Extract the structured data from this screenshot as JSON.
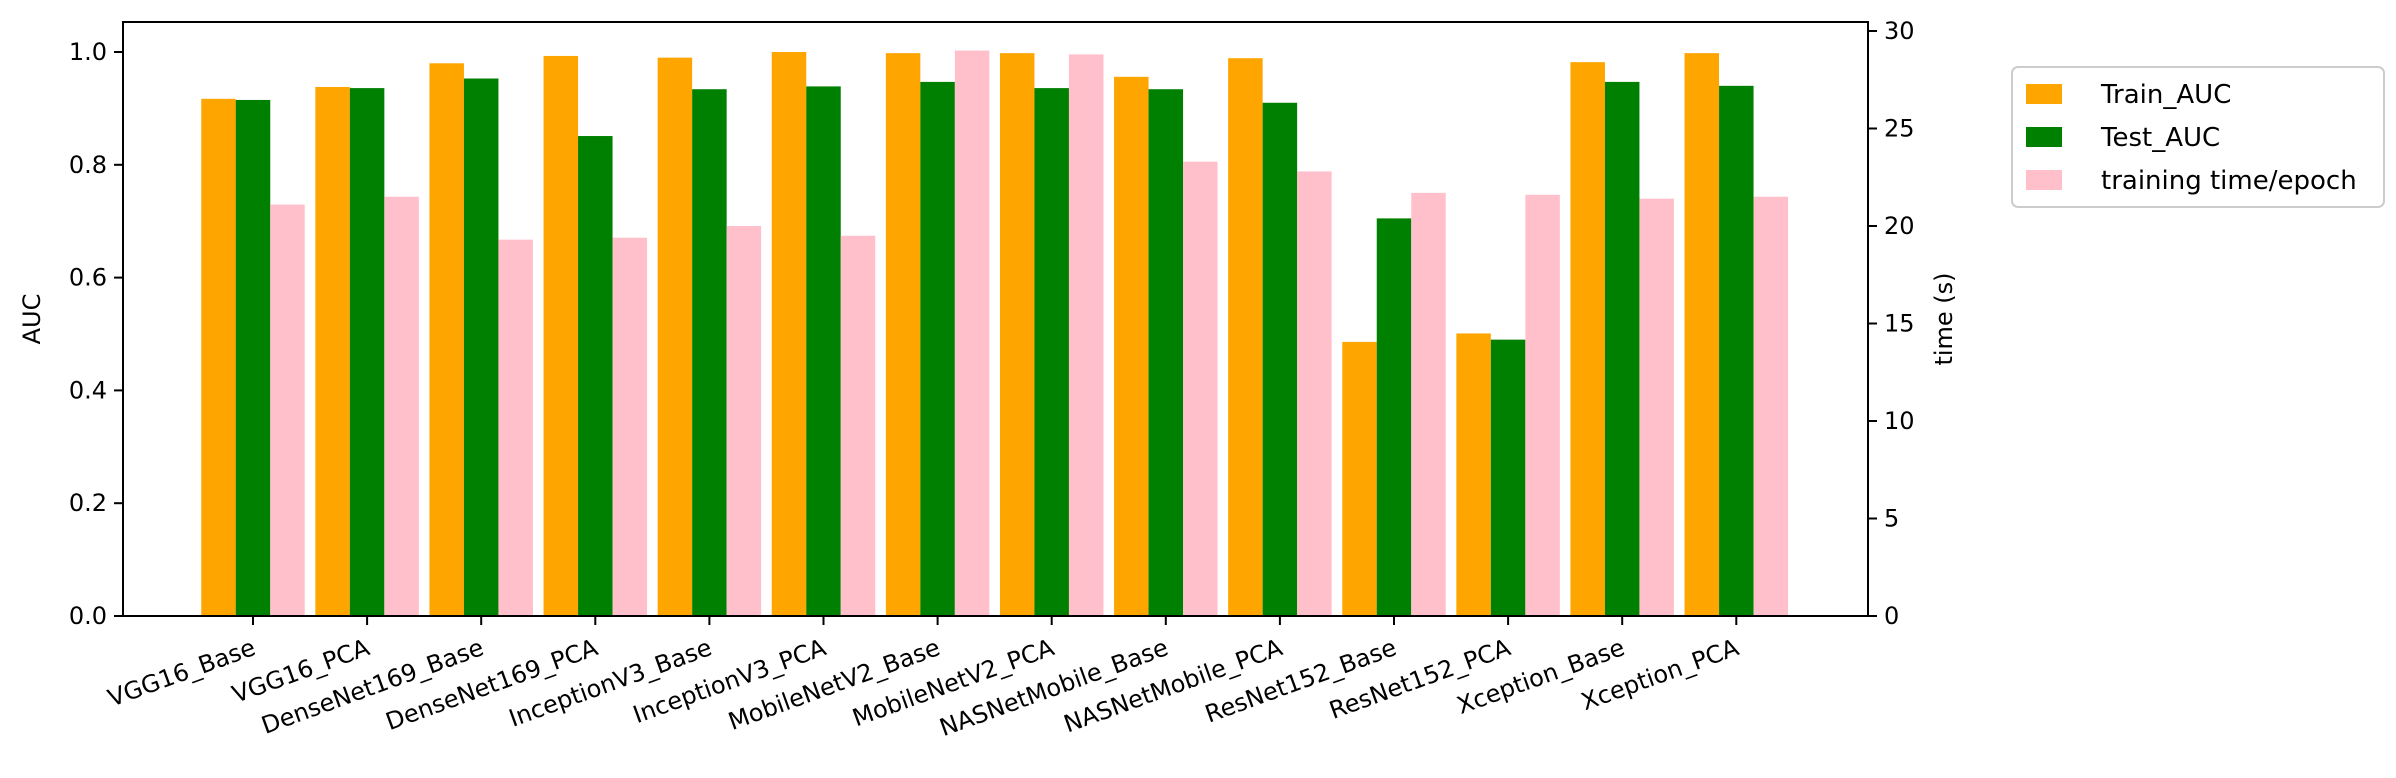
{
  "chart_data": {
    "type": "bar",
    "categories": [
      "VGG16_Base",
      "VGG16_PCA",
      "DenseNet169_Base",
      "DenseNet169_PCA",
      "InceptionV3_Base",
      "InceptionV3_PCA",
      "MobileNetV2_Base",
      "MobileNetV2_PCA",
      "NASNetMobile_Base",
      "NASNetMobile_PCA",
      "ResNet152_Base",
      "ResNet152_PCA",
      "Xception_Base",
      "Xception_PCA"
    ],
    "series": [
      {
        "name": "Train_AUC",
        "axis": "left",
        "color": "#FFA500",
        "values": [
          0.917,
          0.938,
          0.98,
          0.993,
          0.99,
          1.0,
          0.998,
          0.998,
          0.956,
          0.989,
          0.486,
          0.501,
          0.982,
          0.998
        ]
      },
      {
        "name": "Test_AUC",
        "axis": "left",
        "color": "#008000",
        "values": [
          0.915,
          0.936,
          0.953,
          0.851,
          0.934,
          0.939,
          0.947,
          0.936,
          0.934,
          0.91,
          0.705,
          0.49,
          0.947,
          0.94
        ]
      },
      {
        "name": "training time/epoch",
        "axis": "right",
        "color": "#FFC0CB",
        "values": [
          21.1,
          21.5,
          19.3,
          19.4,
          20.0,
          19.5,
          29.0,
          28.8,
          23.3,
          22.8,
          21.7,
          21.6,
          21.4,
          21.5
        ]
      }
    ],
    "ylabel": "AUC",
    "y2label": "time (s)",
    "ylim": [
      0,
      1.05
    ],
    "y2lim": [
      0,
      30.4
    ],
    "yticks": [
      "0.0",
      "0.2",
      "0.4",
      "0.6",
      "0.8",
      "1.0"
    ],
    "y2ticks": [
      "0",
      "5",
      "10",
      "15",
      "20",
      "25",
      "30"
    ],
    "legend_position": "outside-right",
    "grid": false
  }
}
